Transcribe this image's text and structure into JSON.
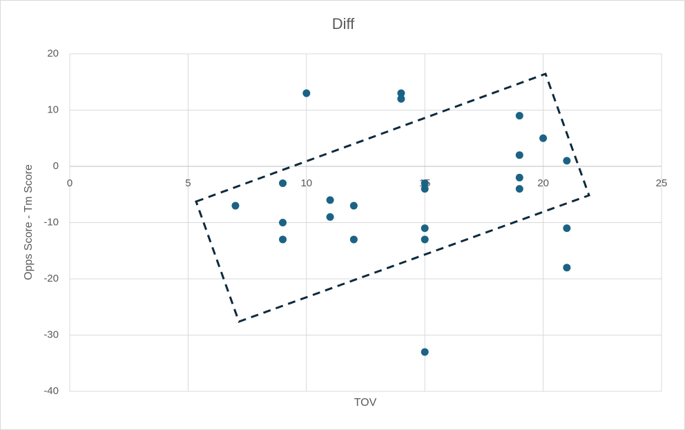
{
  "chart_data": {
    "type": "scatter",
    "title": "Diff",
    "x_label": "TOV",
    "y_label": "Opps Score - Tm Score",
    "series": [
      {
        "name": "Diff",
        "color": "#1b6385",
        "x": [
          7,
          9,
          9,
          9,
          10,
          11,
          11,
          12,
          12,
          14,
          14,
          15,
          15,
          15,
          15,
          15,
          19,
          19,
          19,
          19,
          20,
          21,
          21,
          21
        ],
        "values": [
          -7,
          -3,
          -10,
          -13,
          13,
          -6,
          -9,
          -7,
          -13,
          13,
          12,
          -3,
          -4,
          -11,
          -13,
          -33,
          9,
          2,
          -2,
          -4,
          5,
          1,
          -11,
          -18
        ]
      }
    ],
    "xlim": [
      0,
      25
    ],
    "xticks": [
      0,
      5,
      10,
      15,
      20,
      25
    ],
    "ylim": [
      -40,
      20
    ],
    "yticks": [
      -40,
      -30,
      -20,
      -10,
      0,
      10,
      20
    ],
    "grid": true
  }
}
